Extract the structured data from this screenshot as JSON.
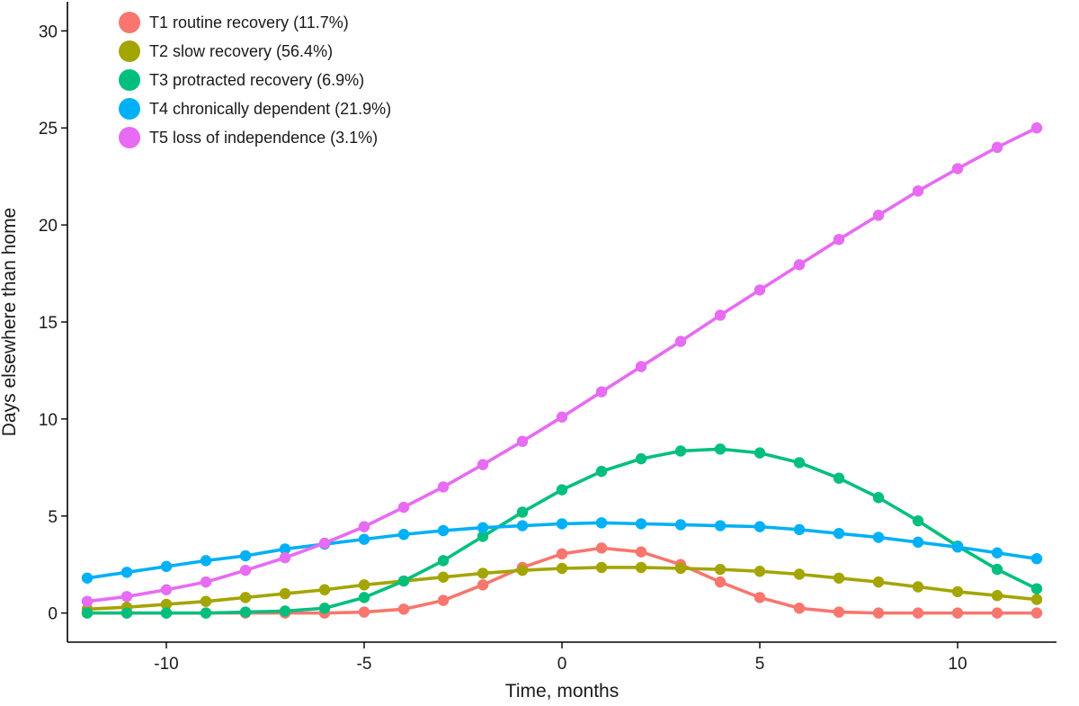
{
  "chart_data": {
    "type": "line",
    "title": "",
    "xlabel": "Time, months",
    "ylabel": "Days elsewhere than home",
    "xlim": [
      -12.5,
      12.5
    ],
    "ylim": [
      -1.5,
      31.5
    ],
    "x_ticks": [
      -10,
      -5,
      0,
      5,
      10
    ],
    "y_ticks": [
      0,
      5,
      10,
      15,
      20,
      25,
      30
    ],
    "grid": false,
    "legend_position": "top-left",
    "x": [
      -12,
      -11,
      -10,
      -9,
      -8,
      -7,
      -6,
      -5,
      -4,
      -3,
      -2,
      -1,
      0,
      1,
      2,
      3,
      4,
      5,
      6,
      7,
      8,
      9,
      10,
      11,
      12
    ],
    "series": [
      {
        "name": "T1 routine recovery (11.7%)",
        "color": "#F8766D",
        "values": [
          0,
          0,
          0,
          0,
          0,
          0,
          0,
          0.05,
          0.2,
          0.65,
          1.45,
          2.35,
          3.05,
          3.35,
          3.15,
          2.5,
          1.6,
          0.8,
          0.25,
          0.05,
          0,
          0,
          0,
          0,
          0
        ]
      },
      {
        "name": "T2 slow recovery (56.4%)",
        "color": "#A3A500",
        "values": [
          0.2,
          0.3,
          0.45,
          0.6,
          0.8,
          1.0,
          1.2,
          1.45,
          1.65,
          1.85,
          2.05,
          2.2,
          2.3,
          2.35,
          2.35,
          2.3,
          2.25,
          2.15,
          2.0,
          1.8,
          1.6,
          1.35,
          1.1,
          0.9,
          0.7
        ]
      },
      {
        "name": "T3 protracted recovery (6.9%)",
        "color": "#00BF7D",
        "values": [
          0,
          0,
          0,
          0,
          0.05,
          0.1,
          0.25,
          0.8,
          1.65,
          2.7,
          3.95,
          5.2,
          6.35,
          7.3,
          7.95,
          8.35,
          8.45,
          8.25,
          7.75,
          6.95,
          5.95,
          4.75,
          3.45,
          2.25,
          1.25
        ]
      },
      {
        "name": "T4 chronically dependent (21.9%)",
        "color": "#00B0F6",
        "values": [
          1.8,
          2.1,
          2.4,
          2.7,
          2.95,
          3.3,
          3.55,
          3.8,
          4.05,
          4.25,
          4.4,
          4.5,
          4.6,
          4.65,
          4.6,
          4.55,
          4.5,
          4.45,
          4.3,
          4.1,
          3.9,
          3.65,
          3.4,
          3.1,
          2.8
        ]
      },
      {
        "name": "T5 loss of independence (3.1%)",
        "color": "#E76BF3",
        "values": [
          0.6,
          0.85,
          1.2,
          1.6,
          2.2,
          2.85,
          3.6,
          4.45,
          5.45,
          6.5,
          7.65,
          8.85,
          10.1,
          11.4,
          12.7,
          14.0,
          15.35,
          16.65,
          17.95,
          19.25,
          20.5,
          21.75,
          22.9,
          24.0,
          25.0
        ]
      }
    ]
  }
}
